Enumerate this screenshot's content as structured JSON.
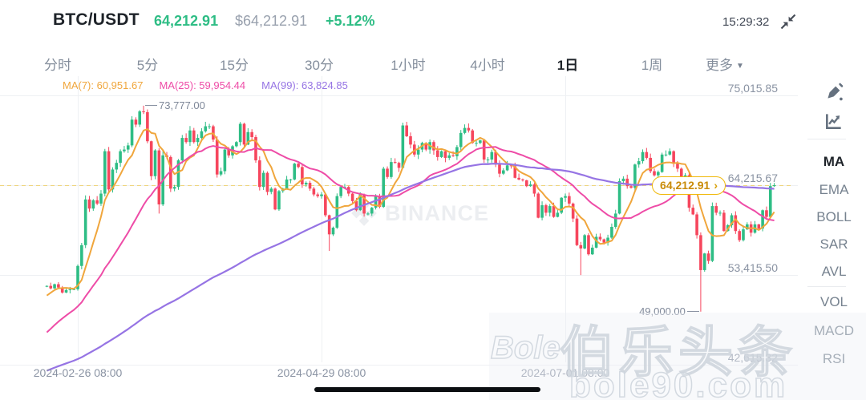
{
  "header": {
    "pair": "BTC/USDT",
    "last_price": "64,212.91",
    "usd_value": "$64,212.91",
    "change_pct": "+5.12%",
    "clock": "15:29:32"
  },
  "timeframes": {
    "items": [
      {
        "label": "分时",
        "active": false
      },
      {
        "label": "5分",
        "active": false
      },
      {
        "label": "15分",
        "active": false
      },
      {
        "label": "30分",
        "active": false
      },
      {
        "label": "1小时",
        "active": false
      },
      {
        "label": "4小时",
        "active": false
      },
      {
        "label": "1日",
        "active": true
      },
      {
        "label": "1周",
        "active": false
      },
      {
        "label": "更多",
        "active": false,
        "caret": "▼"
      }
    ]
  },
  "ma_legend": [
    {
      "text": "MA(7): 60,951.67",
      "color": "#F0A63C"
    },
    {
      "text": "MA(25): 59,954.44",
      "color": "#EE4CA7"
    },
    {
      "text": "MA(99): 63,824.85",
      "color": "#9674E4"
    }
  ],
  "y_axis": {
    "labels": [
      {
        "text": "75,015.85",
        "price": 75015.85
      },
      {
        "text": "64,215.67",
        "price": 64215.67
      },
      {
        "text": "53,415.50",
        "price": 53415.5
      },
      {
        "text": "42,615.32",
        "price": 42615.32
      }
    ]
  },
  "x_axis": {
    "labels": [
      {
        "text": "2024-02-26 08:00",
        "index": 8
      },
      {
        "text": "2024-04-29 08:00",
        "index": 71
      },
      {
        "text": "2024-07-01 08:00",
        "index": 134
      }
    ]
  },
  "markers": {
    "high": {
      "text": "73,777.00",
      "index": 25,
      "price": 73777.0
    },
    "low": {
      "text": "49,000.00",
      "index": 169,
      "price": 49000.0
    }
  },
  "price_badge": {
    "text": "64,212.91",
    "chevron": "›",
    "price": 64212.91
  },
  "sidebar": {
    "tools": [
      "draw-icon",
      "indicator-icon"
    ],
    "main_indicators": [
      "MA",
      "EMA",
      "BOLL",
      "SAR",
      "AVL"
    ],
    "active_indicator": "MA",
    "sub_indicators": [
      "VOL",
      "MACD",
      "RSI"
    ]
  },
  "watermarks": {
    "binance": "BINANCE",
    "site_cn": "伯乐头条",
    "site_en": "bole90.com",
    "site_script": "Bole"
  },
  "chart_data": {
    "type": "candlestick",
    "interval": "1d",
    "start_date": "2024-02-18",
    "current_price": 64212.91,
    "colors": {
      "up": "#2EBD85",
      "down": "#F6465D",
      "grid": "#EEF0F3",
      "dashed": "rgba(240,185,11,0.5)"
    },
    "ma_periods": [
      7,
      25,
      99
    ],
    "ma_colors": {
      "ma7": "#F0A63C",
      "ma25": "#EE4CA7",
      "ma99": "#9674E4"
    },
    "pre_trend_keypoints": [
      [
        0,
        34000
      ],
      [
        45,
        44000
      ],
      [
        75,
        41000
      ],
      [
        97,
        52000
      ]
    ],
    "wick_overrides": {
      "25": {
        "high": 73777
      },
      "29": {
        "low": 60800
      },
      "73": {
        "low": 56300
      },
      "138": {
        "low": 53400
      },
      "169": {
        "low": 49000
      }
    },
    "closes": [
      52100,
      51800,
      52300,
      51900,
      51300,
      51600,
      51700,
      51700,
      54500,
      57000,
      62500,
      61400,
      62400,
      62000,
      63200,
      68300,
      63700,
      66100,
      66900,
      68300,
      68500,
      69000,
      72100,
      71500,
      73100,
      73000,
      69500,
      65300,
      68400,
      61900,
      67800,
      67600,
      63800,
      64000,
      67200,
      69900,
      69400,
      70800,
      69400,
      69900,
      70700,
      71300,
      71300,
      69700,
      65500,
      65900,
      68500,
      67800,
      68900,
      69400,
      71600,
      69100,
      70600,
      70000,
      67200,
      64000,
      65700,
      63400,
      63800,
      61300,
      63500,
      63800,
      64900,
      64900,
      66800,
      66400,
      64300,
      64500,
      63800,
      63100,
      62900,
      63100,
      60600,
      58300,
      59100,
      62900,
      64000,
      64000,
      63200,
      62300,
      61200,
      63100,
      60800,
      60800,
      61500,
      62900,
      61600,
      66200,
      65200,
      67000,
      66900,
      66300,
      71400,
      70100,
      69100,
      67900,
      68500,
      69300,
      68500,
      69400,
      68400,
      67600,
      68300,
      67500,
      67800,
      67700,
      68800,
      70500,
      71100,
      70800,
      69300,
      69300,
      69600,
      67300,
      67300,
      68200,
      66700,
      65600,
      66000,
      66600,
      66500,
      65100,
      64900,
      64800,
      64100,
      64300,
      63200,
      60300,
      61800,
      60900,
      61700,
      60400,
      60900,
      62700,
      62900,
      62000,
      60200,
      57000,
      56600,
      58200,
      55900,
      56700,
      58000,
      57700,
      57300,
      57900,
      59200,
      60800,
      64700,
      65000,
      64100,
      63900,
      66700,
      67100,
      68200,
      67500,
      65900,
      65400,
      65800,
      67900,
      67900,
      68300,
      66800,
      66200,
      64600,
      65400,
      61500,
      60700,
      58200,
      54000,
      56000,
      55100,
      61700,
      60900,
      60900,
      58700,
      59400,
      60600,
      58700,
      57600,
      58900,
      59500,
      58500,
      59500,
      59000,
      61200,
      60400,
      64100,
      64212.91
    ]
  }
}
